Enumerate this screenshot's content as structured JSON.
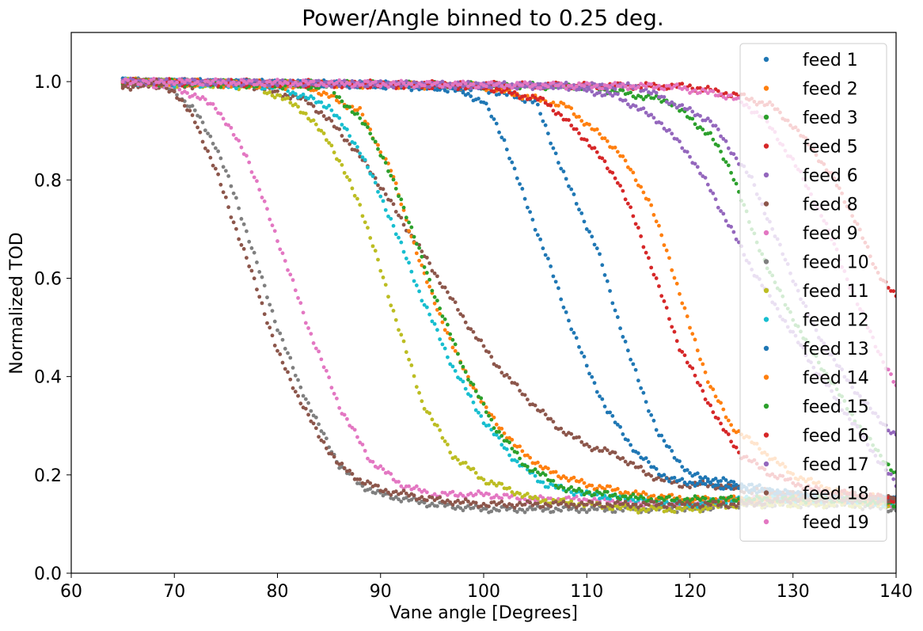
{
  "chart_data": {
    "type": "scatter",
    "title": "Power/Angle binned to 0.25 deg.",
    "xlabel": "Vane angle [Degrees]",
    "ylabel": "Normalized TOD",
    "xlim": [
      60,
      140
    ],
    "ylim": [
      0,
      1.1
    ],
    "xticks": [
      "60",
      "70",
      "80",
      "90",
      "100",
      "110",
      "120",
      "130",
      "140"
    ],
    "yticks": [
      "0.0",
      "0.2",
      "0.4",
      "0.6",
      "0.8",
      "1.0"
    ],
    "grid": false,
    "legend_position": "top-right",
    "series": [
      {
        "name": "feed 1",
        "color": "#1f77b4",
        "x": [
          65,
          90,
          100,
          105,
          108,
          111,
          114,
          117,
          120,
          125,
          130,
          135,
          140
        ],
        "y": [
          1.0,
          0.995,
          0.985,
          0.96,
          0.8,
          0.66,
          0.45,
          0.28,
          0.2,
          0.18,
          0.16,
          0.15,
          0.15
        ]
      },
      {
        "name": "feed 2",
        "color": "#ff7f0e",
        "x": [
          65,
          100,
          108,
          113,
          116,
          118,
          120,
          122,
          124,
          127,
          130,
          135,
          140
        ],
        "y": [
          1.0,
          0.99,
          0.95,
          0.86,
          0.76,
          0.64,
          0.5,
          0.38,
          0.3,
          0.25,
          0.2,
          0.16,
          0.15
        ]
      },
      {
        "name": "feed 3",
        "color": "#2ca02c",
        "x": [
          65,
          110,
          118,
          122,
          124,
          126,
          128,
          131,
          134,
          137,
          140
        ],
        "y": [
          1.0,
          0.99,
          0.96,
          0.89,
          0.82,
          0.7,
          0.6,
          0.48,
          0.38,
          0.28,
          0.2
        ]
      },
      {
        "name": "feed 5",
        "color": "#d62728",
        "x": [
          65,
          120,
          125,
          128,
          130,
          132,
          134,
          136,
          138,
          140
        ],
        "y": [
          1.0,
          0.99,
          0.97,
          0.95,
          0.91,
          0.86,
          0.8,
          0.72,
          0.62,
          0.56
        ]
      },
      {
        "name": "feed 6",
        "color": "#9467bd",
        "x": [
          65,
          108,
          113,
          117,
          120,
          122,
          124,
          126,
          129,
          132,
          136,
          140
        ],
        "y": [
          1.0,
          0.99,
          0.97,
          0.92,
          0.85,
          0.78,
          0.7,
          0.62,
          0.52,
          0.42,
          0.3,
          0.18
        ]
      },
      {
        "name": "feed 8",
        "color": "#8c564b",
        "x": [
          65,
          77,
          83,
          86,
          89,
          92,
          95,
          98,
          101,
          104,
          107,
          110,
          113,
          116,
          119,
          122,
          125,
          130,
          135,
          140
        ],
        "y": [
          0.99,
          0.995,
          0.96,
          0.9,
          0.82,
          0.72,
          0.62,
          0.52,
          0.43,
          0.36,
          0.3,
          0.26,
          0.24,
          0.2,
          0.18,
          0.18,
          0.17,
          0.16,
          0.16,
          0.15
        ]
      },
      {
        "name": "feed 9",
        "color": "#e377c2",
        "x": [
          65,
          70,
          74,
          77,
          80,
          83,
          86,
          89,
          92,
          95,
          100,
          105,
          110,
          115,
          120,
          125,
          130,
          135,
          140
        ],
        "y": [
          1.0,
          0.99,
          0.95,
          0.85,
          0.68,
          0.5,
          0.34,
          0.23,
          0.18,
          0.16,
          0.16,
          0.15,
          0.15,
          0.14,
          0.14,
          0.15,
          0.15,
          0.15,
          0.14
        ]
      },
      {
        "name": "feed 10",
        "color": "#7f7f7f",
        "x": [
          65,
          68,
          70,
          72,
          74,
          76,
          78,
          80,
          82,
          84,
          86,
          88,
          90,
          95,
          100,
          105,
          110,
          115,
          120,
          125,
          130,
          135,
          140
        ],
        "y": [
          1.0,
          1.0,
          0.98,
          0.94,
          0.87,
          0.76,
          0.63,
          0.5,
          0.39,
          0.3,
          0.22,
          0.18,
          0.16,
          0.14,
          0.13,
          0.13,
          0.13,
          0.13,
          0.13,
          0.14,
          0.14,
          0.14,
          0.13
        ]
      },
      {
        "name": "feed 11",
        "color": "#bcbd22",
        "x": [
          65,
          78,
          82,
          85,
          88,
          91,
          94,
          97,
          100,
          105,
          110,
          115,
          120,
          125,
          130,
          135,
          140
        ],
        "y": [
          1.0,
          0.99,
          0.95,
          0.88,
          0.75,
          0.55,
          0.35,
          0.24,
          0.19,
          0.15,
          0.14,
          0.13,
          0.13,
          0.14,
          0.14,
          0.14,
          0.14
        ]
      },
      {
        "name": "feed 12",
        "color": "#17becf",
        "x": [
          65,
          80,
          85,
          88,
          91,
          94,
          97,
          100,
          103,
          106,
          110,
          115,
          120,
          125,
          130,
          135,
          140
        ],
        "y": [
          1.0,
          0.99,
          0.95,
          0.86,
          0.72,
          0.56,
          0.42,
          0.31,
          0.23,
          0.18,
          0.16,
          0.15,
          0.14,
          0.15,
          0.15,
          0.15,
          0.14
        ]
      },
      {
        "name": "feed 13",
        "color": "#1f77b4",
        "x": [
          65,
          85,
          92,
          97,
          100,
          102,
          104,
          106,
          108,
          110,
          112,
          115,
          118,
          122,
          126,
          130,
          135,
          140
        ],
        "y": [
          1.0,
          0.995,
          0.99,
          0.985,
          0.96,
          0.88,
          0.76,
          0.65,
          0.53,
          0.42,
          0.33,
          0.24,
          0.19,
          0.18,
          0.17,
          0.16,
          0.15,
          0.15
        ]
      },
      {
        "name": "feed 14",
        "color": "#ff7f0e",
        "x": [
          65,
          83,
          88,
          91,
          94,
          97,
          100,
          103,
          106,
          110,
          115,
          120,
          125,
          130,
          135,
          140
        ],
        "y": [
          1.0,
          0.99,
          0.94,
          0.82,
          0.62,
          0.46,
          0.34,
          0.26,
          0.21,
          0.18,
          0.16,
          0.15,
          0.15,
          0.15,
          0.15,
          0.14
        ]
      },
      {
        "name": "feed 15",
        "color": "#2ca02c",
        "x": [
          65,
          85,
          89,
          92,
          95,
          98,
          101,
          104,
          108,
          112,
          116,
          120,
          125,
          130,
          135,
          140
        ],
        "y": [
          1.0,
          0.99,
          0.9,
          0.76,
          0.58,
          0.42,
          0.3,
          0.22,
          0.17,
          0.16,
          0.15,
          0.15,
          0.15,
          0.15,
          0.15,
          0.14
        ]
      },
      {
        "name": "feed 16",
        "color": "#d62728",
        "x": [
          65,
          100,
          106,
          110,
          113,
          115,
          117,
          119,
          121,
          123,
          125,
          128,
          132,
          136,
          140
        ],
        "y": [
          1.0,
          0.99,
          0.96,
          0.88,
          0.8,
          0.7,
          0.58,
          0.46,
          0.38,
          0.3,
          0.24,
          0.2,
          0.17,
          0.16,
          0.15
        ]
      },
      {
        "name": "feed 17",
        "color": "#9467bd",
        "x": [
          65,
          115,
          122,
          126,
          129,
          132,
          135,
          138,
          140
        ],
        "y": [
          1.0,
          0.99,
          0.92,
          0.8,
          0.65,
          0.5,
          0.4,
          0.32,
          0.28
        ]
      },
      {
        "name": "feed 18",
        "color": "#8c564b",
        "x": [
          65,
          68,
          70,
          72,
          74,
          76,
          78,
          80,
          82,
          84,
          86,
          88,
          90,
          95,
          100,
          105,
          110,
          115,
          120,
          125,
          130,
          135,
          140
        ],
        "y": [
          0.99,
          1.0,
          0.98,
          0.92,
          0.82,
          0.7,
          0.58,
          0.45,
          0.36,
          0.28,
          0.22,
          0.19,
          0.17,
          0.15,
          0.14,
          0.14,
          0.14,
          0.14,
          0.14,
          0.14,
          0.15,
          0.15,
          0.15
        ]
      },
      {
        "name": "feed 19",
        "color": "#e377c2",
        "x": [
          65,
          118,
          124,
          127,
          130,
          133,
          136,
          139,
          140
        ],
        "y": [
          1.0,
          0.99,
          0.97,
          0.93,
          0.84,
          0.72,
          0.56,
          0.42,
          0.38
        ]
      }
    ]
  }
}
